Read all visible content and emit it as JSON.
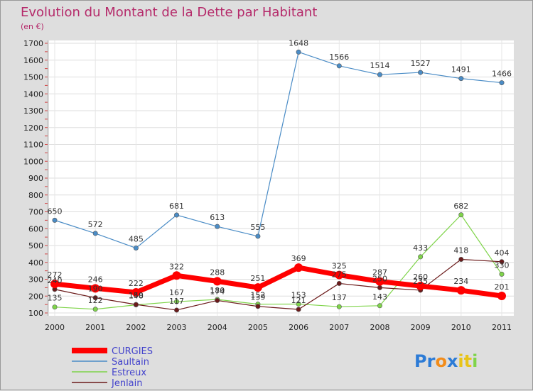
{
  "chart_data": {
    "type": "line",
    "title": "Evolution du Montant de la Dette par Habitant",
    "subtitle": "(en €)",
    "x": [
      "2000",
      "2001",
      "2002",
      "2003",
      "2004",
      "2005",
      "2006",
      "2007",
      "2008",
      "2009",
      "2010",
      "2011"
    ],
    "ylim": [
      100,
      1700
    ],
    "yticks": [
      100,
      200,
      300,
      400,
      500,
      600,
      700,
      800,
      900,
      1000,
      1100,
      1200,
      1300,
      1400,
      1500,
      1600,
      1700
    ],
    "grid": true,
    "legend_position": "bottom-left",
    "series": [
      {
        "name": "CURGIES",
        "color": "#ff0000",
        "values": [
          272,
          246,
          222,
          322,
          288,
          251,
          369,
          325,
          287,
          260,
          234,
          201
        ]
      },
      {
        "name": "Saultain",
        "color": "#4a8cc6",
        "values": [
          650,
          572,
          485,
          681,
          613,
          555,
          1648,
          1566,
          1514,
          1527,
          1491,
          1466
        ]
      },
      {
        "name": "Estreux",
        "color": "#7fd44a",
        "values": [
          135,
          122,
          148,
          167,
          180,
          152,
          153,
          137,
          143,
          433,
          682,
          330
        ]
      },
      {
        "name": "Jenlain",
        "color": "#6b1a1a",
        "values": [
          240,
          190,
          150,
          117,
          174,
          139,
          121,
          275,
          250,
          235,
          418,
          404
        ]
      }
    ]
  },
  "brand": {
    "text": "Proxiti",
    "letters": [
      "P",
      "r",
      "o",
      "x",
      "i",
      "t",
      "i"
    ],
    "colors": [
      "#2c7bd6",
      "#2c7bd6",
      "#f28c1a",
      "#2c7bd6",
      "#e8c41a",
      "#e8c41a",
      "#7fd44a"
    ]
  }
}
